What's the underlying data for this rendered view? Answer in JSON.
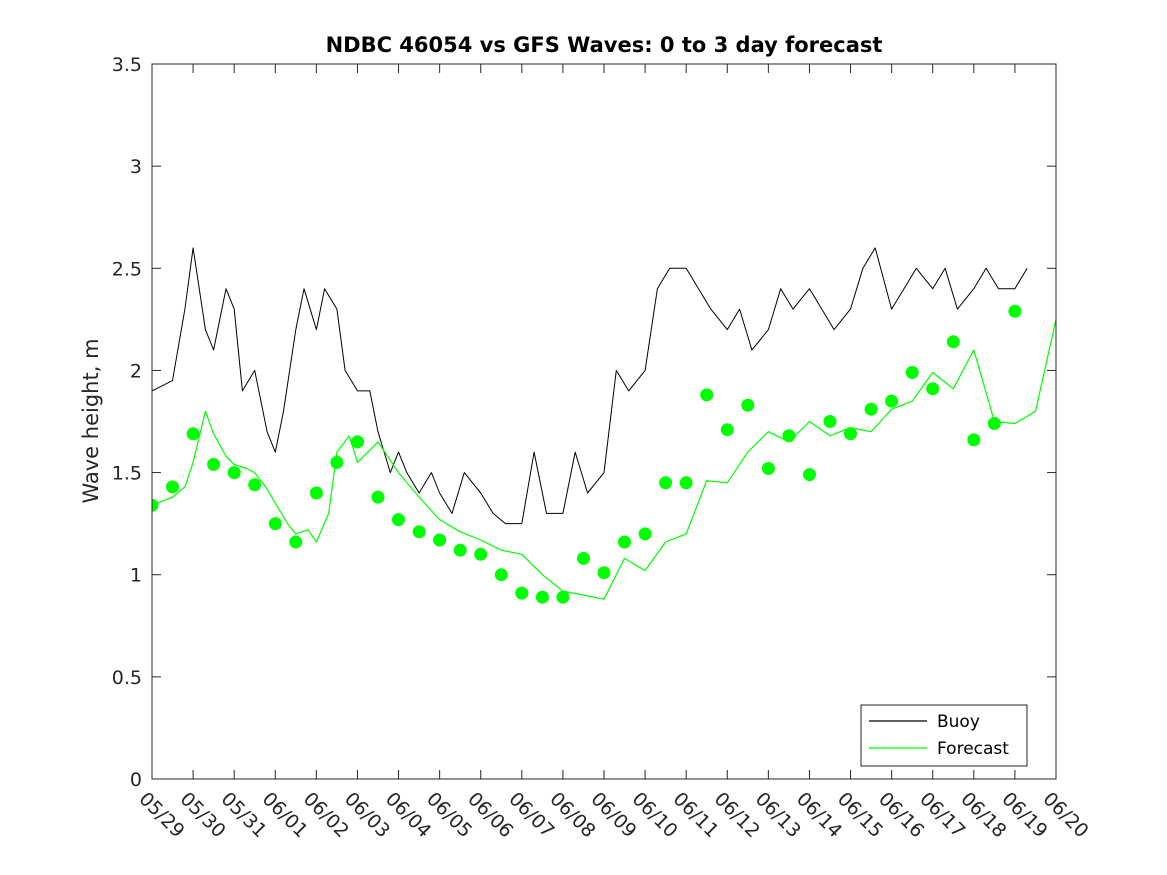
{
  "chart_data": {
    "type": "line",
    "title": "NDBC 46054 vs GFS Waves: 0 to 3 day forecast",
    "ylabel": "Wave height, m",
    "xlabel": "",
    "ylim": [
      0,
      3.5
    ],
    "yticks": [
      "0",
      "0.5",
      "1",
      "1.5",
      "2",
      "2.5",
      "3",
      "3.5"
    ],
    "xlim_days": [
      0,
      22
    ],
    "xticks": [
      "05/29",
      "05/30",
      "05/31",
      "06/01",
      "06/02",
      "06/03",
      "06/04",
      "06/05",
      "06/06",
      "06/07",
      "06/08",
      "06/09",
      "06/10",
      "06/11",
      "06/12",
      "06/13",
      "06/14",
      "06/15",
      "06/16",
      "06/17",
      "06/18",
      "06/19",
      "06/20"
    ],
    "grid": false,
    "legend_position": "bottom-right",
    "colors": {
      "buoy": "#000000",
      "forecast": "#00ff00"
    },
    "series": [
      {
        "name": "Buoy",
        "role": "observed",
        "x": [
          0,
          0.5,
          0.8,
          1.0,
          1.3,
          1.5,
          1.8,
          2.0,
          2.2,
          2.5,
          2.8,
          3.0,
          3.2,
          3.5,
          3.7,
          4.0,
          4.2,
          4.5,
          4.7,
          5.0,
          5.3,
          5.5,
          5.8,
          6.0,
          6.2,
          6.5,
          6.8,
          7.0,
          7.3,
          7.6,
          8.0,
          8.3,
          8.6,
          9.0,
          9.3,
          9.6,
          10.0,
          10.3,
          10.6,
          11.0,
          11.3,
          11.6,
          12.0,
          12.3,
          12.6,
          13.0,
          13.3,
          13.6,
          14.0,
          14.3,
          14.6,
          15.0,
          15.3,
          15.6,
          16.0,
          16.3,
          16.6,
          17.0,
          17.3,
          17.6,
          18.0,
          18.3,
          18.6,
          19.0,
          19.3,
          19.6,
          20.0,
          20.3,
          20.6,
          21.0,
          21.3
        ],
        "values": [
          1.9,
          1.95,
          2.3,
          2.6,
          2.2,
          2.1,
          2.4,
          2.3,
          1.9,
          2.0,
          1.7,
          1.6,
          1.8,
          2.2,
          2.4,
          2.2,
          2.4,
          2.3,
          2.0,
          1.9,
          1.9,
          1.7,
          1.5,
          1.6,
          1.5,
          1.4,
          1.5,
          1.4,
          1.3,
          1.5,
          1.4,
          1.3,
          1.25,
          1.25,
          1.6,
          1.3,
          1.3,
          1.6,
          1.4,
          1.5,
          2.0,
          1.9,
          2.0,
          2.4,
          2.5,
          2.5,
          2.4,
          2.3,
          2.2,
          2.3,
          2.1,
          2.2,
          2.4,
          2.3,
          2.4,
          2.3,
          2.2,
          2.3,
          2.5,
          2.6,
          2.3,
          2.4,
          2.5,
          2.4,
          2.5,
          2.3,
          2.4,
          2.5,
          2.4,
          2.4,
          2.5
        ]
      },
      {
        "name": "Forecast",
        "role": "forecast",
        "x": [
          0,
          0.5,
          0.8,
          1.0,
          1.3,
          1.5,
          1.8,
          2.0,
          2.3,
          2.5,
          2.8,
          3.0,
          3.3,
          3.5,
          3.8,
          4.0,
          4.3,
          4.5,
          4.8,
          5.0,
          5.5,
          6.0,
          6.5,
          7.0,
          7.5,
          8.0,
          8.5,
          9.0,
          9.5,
          10.0,
          10.5,
          11.0,
          11.5,
          12.0,
          12.5,
          13.0,
          13.5,
          14.0,
          14.5,
          15.0,
          15.5,
          16.0,
          16.5,
          17.0,
          17.5,
          18.0,
          18.5,
          19.0,
          19.5,
          20.0,
          20.5,
          21.0,
          21.5,
          22.0
        ],
        "values": [
          1.34,
          1.38,
          1.43,
          1.55,
          1.8,
          1.69,
          1.58,
          1.54,
          1.52,
          1.5,
          1.42,
          1.35,
          1.25,
          1.2,
          1.22,
          1.16,
          1.3,
          1.6,
          1.68,
          1.55,
          1.65,
          1.5,
          1.38,
          1.27,
          1.21,
          1.17,
          1.12,
          1.1,
          1.0,
          0.92,
          0.9,
          0.88,
          1.08,
          1.02,
          1.16,
          1.2,
          1.46,
          1.45,
          1.6,
          1.7,
          1.65,
          1.75,
          1.68,
          1.72,
          1.7,
          1.81,
          1.85,
          1.99,
          1.91,
          2.1,
          1.75,
          1.74,
          1.8,
          2.25
        ]
      }
    ],
    "forecast_markers": {
      "x": [
        0,
        0.5,
        1.0,
        1.5,
        2.0,
        2.5,
        3.0,
        3.5,
        4.0,
        4.5,
        5.0,
        5.5,
        6.0,
        6.5,
        7.0,
        7.5,
        8.0,
        8.5,
        9.0,
        9.5,
        10.0,
        10.5,
        11.0,
        11.5,
        12.0,
        12.5,
        13.0,
        13.5,
        14.0,
        14.5,
        15.0,
        15.5,
        16.0,
        16.5,
        17.0,
        17.5,
        18.0,
        18.5,
        19.0,
        19.5,
        20.0,
        20.5,
        21.0
      ],
      "values": [
        1.34,
        1.43,
        1.69,
        1.54,
        1.5,
        1.44,
        1.25,
        1.16,
        1.4,
        1.55,
        1.65,
        1.38,
        1.27,
        1.21,
        1.17,
        1.12,
        1.1,
        1.0,
        0.91,
        0.89,
        0.89,
        1.08,
        1.01,
        1.16,
        1.2,
        1.45,
        1.45,
        1.88,
        1.71,
        1.83,
        1.52,
        1.68,
        1.49,
        1.75,
        1.69,
        1.81,
        1.85,
        1.99,
        1.91,
        2.14,
        1.66,
        1.74,
        2.29
      ]
    }
  }
}
